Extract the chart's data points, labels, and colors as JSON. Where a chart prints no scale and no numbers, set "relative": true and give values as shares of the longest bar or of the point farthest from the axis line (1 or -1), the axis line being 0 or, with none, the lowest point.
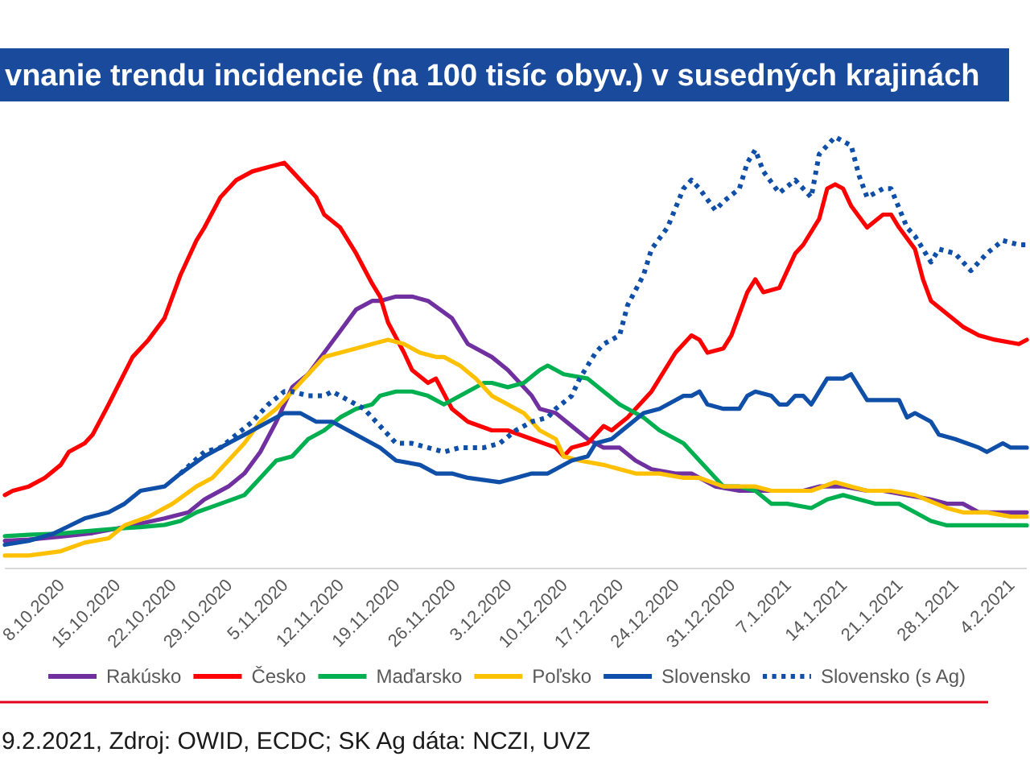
{
  "chart_data": {
    "type": "line",
    "relative": true,
    "title": "vnanie trendu incidencie (na 100 tisíc obyv.) v susedných krajinách",
    "annotations": [
      "9.2.2021, Zdroj: OWID, ECDC; SK Ag dáta: NCZI, UVZ"
    ],
    "xlim": [
      "2020-10-01",
      "2021-02-06"
    ],
    "xticks": [
      {
        "value": "2020-10-08",
        "label": "8.10.2020"
      },
      {
        "value": "2020-10-15",
        "label": "15.10.2020"
      },
      {
        "value": "2020-10-22",
        "label": "22.10.2020"
      },
      {
        "value": "2020-10-29",
        "label": "29.10.2020"
      },
      {
        "value": "2020-11-05",
        "label": "5.11.2020"
      },
      {
        "value": "2020-11-12",
        "label": "12.11.2020"
      },
      {
        "value": "2020-11-19",
        "label": "19.11.2020"
      },
      {
        "value": "2020-11-26",
        "label": "26.11.2020"
      },
      {
        "value": "2020-12-03",
        "label": "3.12.2020"
      },
      {
        "value": "2020-12-10",
        "label": "10.12.2020"
      },
      {
        "value": "2020-12-17",
        "label": "17.12.2020"
      },
      {
        "value": "2020-12-24",
        "label": "24.12.2020"
      },
      {
        "value": "2020-12-31",
        "label": "31.12.2020"
      },
      {
        "value": "2021-01-07",
        "label": "7.1.2021"
      },
      {
        "value": "2021-01-14",
        "label": "14.1.2021"
      },
      {
        "value": "2021-01-21",
        "label": "21.1.2021"
      },
      {
        "value": "2021-01-28",
        "label": "28.1.2021"
      },
      {
        "value": "2021-02-04",
        "label": "4.2.2021"
      }
    ],
    "legend": "bottom",
    "series": [
      {
        "name": "Rakúsko",
        "color": "#7030a0",
        "x": [
          "2020-10-01",
          "2020-10-04",
          "2020-10-08",
          "2020-10-12",
          "2020-10-16",
          "2020-10-18",
          "2020-10-21",
          "2020-10-24",
          "2020-10-26",
          "2020-10-29",
          "2020-10-31",
          "2020-11-02",
          "2020-11-04",
          "2020-11-06",
          "2020-11-08",
          "2020-11-10",
          "2020-11-12",
          "2020-11-14",
          "2020-11-16",
          "2020-11-17",
          "2020-11-19",
          "2020-11-21",
          "2020-11-23",
          "2020-11-26",
          "2020-11-28",
          "2020-12-01",
          "2020-12-03",
          "2020-12-06",
          "2020-12-07",
          "2020-12-09",
          "2020-12-11",
          "2020-12-13",
          "2020-12-15",
          "2020-12-17",
          "2020-12-19",
          "2020-12-21",
          "2020-12-24",
          "2020-12-26",
          "2020-12-29",
          "2021-01-01",
          "2021-01-03",
          "2021-01-06",
          "2021-01-09",
          "2021-01-11",
          "2021-01-14",
          "2021-01-17",
          "2021-01-19",
          "2021-01-22",
          "2021-01-25",
          "2021-01-27",
          "2021-01-29",
          "2021-01-31",
          "2021-02-02",
          "2021-02-06"
        ],
        "values": [
          0.064,
          0.067,
          0.074,
          0.082,
          0.096,
          0.104,
          0.116,
          0.13,
          0.16,
          0.19,
          0.22,
          0.27,
          0.34,
          0.42,
          0.45,
          0.5,
          0.55,
          0.6,
          0.62,
          0.62,
          0.63,
          0.63,
          0.62,
          0.58,
          0.52,
          0.49,
          0.46,
          0.4,
          0.37,
          0.36,
          0.33,
          0.3,
          0.28,
          0.28,
          0.25,
          0.23,
          0.22,
          0.22,
          0.19,
          0.18,
          0.18,
          0.18,
          0.18,
          0.19,
          0.19,
          0.18,
          0.18,
          0.17,
          0.16,
          0.15,
          0.15,
          0.13,
          0.13,
          0.13
        ]
      },
      {
        "name": "Česko",
        "color": "#ff0000",
        "x": [
          "2020-10-01",
          "2020-10-02",
          "2020-10-04",
          "2020-10-06",
          "2020-10-08",
          "2020-10-09",
          "2020-10-11",
          "2020-10-12",
          "2020-10-14",
          "2020-10-17",
          "2020-10-19",
          "2020-10-21",
          "2020-10-23",
          "2020-10-25",
          "2020-10-26",
          "2020-10-28",
          "2020-10-30",
          "2020-11-01",
          "2020-11-03",
          "2020-11-05",
          "2020-11-06",
          "2020-11-09",
          "2020-11-10",
          "2020-11-12",
          "2020-11-14",
          "2020-11-16",
          "2020-11-17",
          "2020-11-18",
          "2020-11-20",
          "2020-11-21",
          "2020-11-23",
          "2020-11-24",
          "2020-11-26",
          "2020-11-28",
          "2020-12-01",
          "2020-12-03",
          "2020-12-06",
          "2020-12-09",
          "2020-12-10",
          "2020-12-11",
          "2020-12-13",
          "2020-12-15",
          "2020-12-16",
          "2020-12-18",
          "2020-12-19",
          "2020-12-21",
          "2020-12-24",
          "2020-12-26",
          "2020-12-27",
          "2020-12-28",
          "2020-12-30",
          "2020-12-31",
          "2021-01-02",
          "2021-01-03",
          "2021-01-04",
          "2021-01-06",
          "2021-01-07",
          "2021-01-08",
          "2021-01-09",
          "2021-01-11",
          "2021-01-12",
          "2021-01-13",
          "2021-01-14",
          "2021-01-15",
          "2021-01-17",
          "2021-01-19",
          "2021-01-20",
          "2021-01-21",
          "2021-01-23",
          "2021-01-24",
          "2021-01-25",
          "2021-01-27",
          "2021-01-29",
          "2021-01-31",
          "2021-02-02",
          "2021-02-05",
          "2021-02-06"
        ],
        "values": [
          0.17,
          0.18,
          0.19,
          0.21,
          0.24,
          0.27,
          0.29,
          0.31,
          0.38,
          0.49,
          0.53,
          0.58,
          0.68,
          0.76,
          0.79,
          0.86,
          0.9,
          0.92,
          0.93,
          0.94,
          0.92,
          0.86,
          0.82,
          0.79,
          0.73,
          0.66,
          0.63,
          0.57,
          0.5,
          0.46,
          0.43,
          0.44,
          0.37,
          0.34,
          0.32,
          0.32,
          0.3,
          0.28,
          0.26,
          0.28,
          0.29,
          0.33,
          0.32,
          0.35,
          0.37,
          0.41,
          0.5,
          0.54,
          0.53,
          0.5,
          0.51,
          0.54,
          0.64,
          0.67,
          0.64,
          0.65,
          0.69,
          0.73,
          0.75,
          0.81,
          0.88,
          0.89,
          0.88,
          0.84,
          0.79,
          0.82,
          0.82,
          0.79,
          0.74,
          0.67,
          0.62,
          0.59,
          0.56,
          0.54,
          0.53,
          0.52,
          0.53
        ]
      },
      {
        "name": "Maďarsko",
        "color": "#00b050",
        "x": [
          "2020-10-01",
          "2020-10-04",
          "2020-10-08",
          "2020-10-11",
          "2020-10-14",
          "2020-10-18",
          "2020-10-21",
          "2020-10-23",
          "2020-10-25",
          "2020-10-28",
          "2020-10-31",
          "2020-11-02",
          "2020-11-04",
          "2020-11-06",
          "2020-11-08",
          "2020-11-10",
          "2020-11-12",
          "2020-11-14",
          "2020-11-16",
          "2020-11-17",
          "2020-11-19",
          "2020-11-21",
          "2020-11-23",
          "2020-11-25",
          "2020-11-26",
          "2020-11-28",
          "2020-11-30",
          "2020-12-01",
          "2020-12-03",
          "2020-12-05",
          "2020-12-07",
          "2020-12-08",
          "2020-12-10",
          "2020-12-13",
          "2020-12-15",
          "2020-12-17",
          "2020-12-20",
          "2020-12-22",
          "2020-12-25",
          "2020-12-27",
          "2020-12-29",
          "2020-12-30",
          "2021-01-01",
          "2021-01-03",
          "2021-01-05",
          "2021-01-07",
          "2021-01-10",
          "2021-01-12",
          "2021-01-14",
          "2021-01-16",
          "2021-01-18",
          "2021-01-21",
          "2021-01-23",
          "2021-01-25",
          "2021-01-27",
          "2021-01-30",
          "2021-02-02",
          "2021-02-06"
        ],
        "values": [
          0.075,
          0.078,
          0.081,
          0.086,
          0.091,
          0.096,
          0.101,
          0.11,
          0.13,
          0.15,
          0.17,
          0.21,
          0.25,
          0.26,
          0.3,
          0.32,
          0.35,
          0.37,
          0.38,
          0.4,
          0.41,
          0.41,
          0.4,
          0.38,
          0.39,
          0.41,
          0.43,
          0.43,
          0.42,
          0.43,
          0.46,
          0.47,
          0.45,
          0.44,
          0.41,
          0.38,
          0.35,
          0.32,
          0.29,
          0.25,
          0.21,
          0.19,
          0.19,
          0.18,
          0.15,
          0.15,
          0.14,
          0.16,
          0.17,
          0.16,
          0.15,
          0.15,
          0.13,
          0.11,
          0.1,
          0.1,
          0.1,
          0.1
        ]
      },
      {
        "name": "Poľsko",
        "color": "#ffc000",
        "x": [
          "2020-10-01",
          "2020-10-04",
          "2020-10-08",
          "2020-10-11",
          "2020-10-14",
          "2020-10-16",
          "2020-10-19",
          "2020-10-22",
          "2020-10-25",
          "2020-10-27",
          "2020-10-29",
          "2020-10-31",
          "2020-11-02",
          "2020-11-04",
          "2020-11-06",
          "2020-11-08",
          "2020-11-10",
          "2020-11-12",
          "2020-11-14",
          "2020-11-16",
          "2020-11-18",
          "2020-11-20",
          "2020-11-22",
          "2020-11-24",
          "2020-11-25",
          "2020-11-27",
          "2020-11-29",
          "2020-12-01",
          "2020-12-03",
          "2020-12-05",
          "2020-12-07",
          "2020-12-09",
          "2020-12-10",
          "2020-12-12",
          "2020-12-15",
          "2020-12-19",
          "2020-12-22",
          "2020-12-25",
          "2020-12-27",
          "2020-12-30",
          "2021-01-01",
          "2021-01-03",
          "2021-01-05",
          "2021-01-07",
          "2021-01-10",
          "2021-01-13",
          "2021-01-15",
          "2021-01-17",
          "2021-01-20",
          "2021-01-23",
          "2021-01-27",
          "2021-01-29",
          "2021-02-01",
          "2021-02-04",
          "2021-02-06"
        ],
        "values": [
          0.03,
          0.03,
          0.04,
          0.06,
          0.07,
          0.1,
          0.12,
          0.15,
          0.19,
          0.21,
          0.25,
          0.29,
          0.34,
          0.37,
          0.41,
          0.45,
          0.49,
          0.5,
          0.51,
          0.52,
          0.53,
          0.52,
          0.5,
          0.49,
          0.49,
          0.47,
          0.44,
          0.4,
          0.38,
          0.36,
          0.32,
          0.3,
          0.26,
          0.25,
          0.24,
          0.22,
          0.22,
          0.21,
          0.21,
          0.19,
          0.19,
          0.19,
          0.18,
          0.18,
          0.18,
          0.2,
          0.19,
          0.18,
          0.18,
          0.17,
          0.14,
          0.13,
          0.13,
          0.12,
          0.12
        ]
      },
      {
        "name": "Slovensko",
        "color": "#0f4fa8",
        "x": [
          "2020-10-01",
          "2020-10-04",
          "2020-10-07",
          "2020-10-09",
          "2020-10-11",
          "2020-10-14",
          "2020-10-16",
          "2020-10-18",
          "2020-10-21",
          "2020-10-23",
          "2020-10-26",
          "2020-10-29",
          "2020-10-31",
          "2020-11-03",
          "2020-11-05",
          "2020-11-07",
          "2020-11-09",
          "2020-11-11",
          "2020-11-13",
          "2020-11-15",
          "2020-11-17",
          "2020-11-19",
          "2020-11-22",
          "2020-11-24",
          "2020-11-26",
          "2020-11-28",
          "2020-12-02",
          "2020-12-04",
          "2020-12-06",
          "2020-12-08",
          "2020-12-11",
          "2020-12-13",
          "2020-12-14",
          "2020-12-16",
          "2020-12-18",
          "2020-12-20",
          "2020-12-22",
          "2020-12-24",
          "2020-12-25",
          "2020-12-26",
          "2020-12-27",
          "2020-12-28",
          "2020-12-30",
          "2020-12-31",
          "2021-01-01",
          "2021-01-02",
          "2021-01-03",
          "2021-01-05",
          "2021-01-06",
          "2021-01-07",
          "2021-01-08",
          "2021-01-09",
          "2021-01-10",
          "2021-01-12",
          "2021-01-14",
          "2021-01-15",
          "2021-01-17",
          "2021-01-19",
          "2021-01-21",
          "2021-01-22",
          "2021-01-23",
          "2021-01-25",
          "2021-01-26",
          "2021-01-28",
          "2021-01-31",
          "2021-02-01",
          "2021-02-03",
          "2021-02-04",
          "2021-02-06"
        ],
        "values": [
          0.055,
          0.064,
          0.08,
          0.098,
          0.116,
          0.13,
          0.15,
          0.18,
          0.19,
          0.22,
          0.26,
          0.29,
          0.31,
          0.34,
          0.36,
          0.36,
          0.34,
          0.34,
          0.32,
          0.3,
          0.28,
          0.25,
          0.24,
          0.22,
          0.22,
          0.21,
          0.2,
          0.21,
          0.22,
          0.22,
          0.25,
          0.26,
          0.29,
          0.3,
          0.33,
          0.36,
          0.37,
          0.39,
          0.4,
          0.4,
          0.41,
          0.38,
          0.37,
          0.37,
          0.37,
          0.4,
          0.41,
          0.4,
          0.38,
          0.38,
          0.4,
          0.4,
          0.38,
          0.44,
          0.44,
          0.45,
          0.39,
          0.39,
          0.39,
          0.35,
          0.36,
          0.34,
          0.31,
          0.3,
          0.28,
          0.27,
          0.29,
          0.28,
          0.28
        ]
      },
      {
        "name": "Slovensko (s Ag)",
        "color": "#0f4fa8",
        "line_style": "dotted",
        "x": [
          "2020-10-23",
          "2020-10-26",
          "2020-10-28",
          "2020-10-30",
          "2020-11-01",
          "2020-11-03",
          "2020-11-05",
          "2020-11-06",
          "2020-11-08",
          "2020-11-10",
          "2020-11-11",
          "2020-11-13",
          "2020-11-15",
          "2020-11-17",
          "2020-11-19",
          "2020-11-21",
          "2020-11-23",
          "2020-11-25",
          "2020-11-27",
          "2020-11-30",
          "2020-12-02",
          "2020-12-04",
          "2020-12-06",
          "2020-12-08",
          "2020-12-09",
          "2020-12-11",
          "2020-12-12",
          "2020-12-14",
          "2020-12-15",
          "2020-12-17",
          "2020-12-18",
          "2020-12-20",
          "2020-12-21",
          "2020-12-23",
          "2020-12-25",
          "2020-12-26",
          "2020-12-27",
          "2020-12-29",
          "2020-12-30",
          "2021-01-01",
          "2021-01-02",
          "2021-01-03",
          "2021-01-04",
          "2021-01-06",
          "2021-01-08",
          "2021-01-10",
          "2021-01-11",
          "2021-01-13",
          "2021-01-15",
          "2021-01-16",
          "2021-01-17",
          "2021-01-19",
          "2021-01-20",
          "2021-01-22",
          "2021-01-23",
          "2021-01-25",
          "2021-01-26",
          "2021-01-28",
          "2021-01-30",
          "2021-02-01",
          "2021-02-03",
          "2021-02-05",
          "2021-02-06"
        ],
        "values": [
          0.22,
          0.27,
          0.28,
          0.31,
          0.34,
          0.38,
          0.41,
          0.41,
          0.4,
          0.4,
          0.41,
          0.39,
          0.37,
          0.33,
          0.29,
          0.29,
          0.28,
          0.27,
          0.28,
          0.28,
          0.29,
          0.32,
          0.34,
          0.35,
          0.37,
          0.4,
          0.44,
          0.5,
          0.52,
          0.54,
          0.61,
          0.68,
          0.74,
          0.79,
          0.88,
          0.9,
          0.88,
          0.83,
          0.85,
          0.88,
          0.94,
          0.97,
          0.92,
          0.87,
          0.9,
          0.86,
          0.96,
          1.0,
          0.98,
          0.91,
          0.86,
          0.88,
          0.88,
          0.79,
          0.77,
          0.71,
          0.74,
          0.73,
          0.69,
          0.73,
          0.76,
          0.75,
          0.75
        ]
      }
    ]
  }
}
